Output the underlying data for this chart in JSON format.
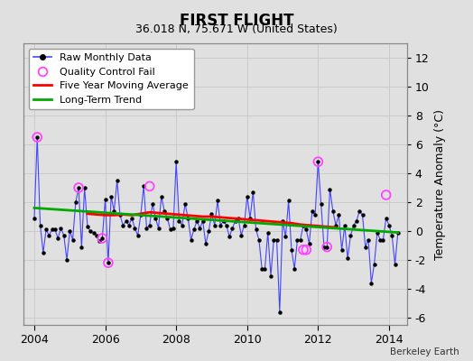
{
  "title": "FIRST FLIGHT",
  "subtitle": "36.018 N, 75.671 W (United States)",
  "ylabel": "Temperature Anomaly (°C)",
  "credit": "Berkeley Earth",
  "xlim": [
    2003.7,
    2014.5
  ],
  "ylim": [
    -6.5,
    13.0
  ],
  "yticks": [
    -6,
    -4,
    -2,
    0,
    2,
    4,
    6,
    8,
    10,
    12
  ],
  "xticks": [
    2004,
    2006,
    2008,
    2010,
    2012,
    2014
  ],
  "bg_color": "#e0e0e0",
  "plot_bg": "#e0e0e0",
  "raw_color": "#4444ff",
  "dot_color": "#000000",
  "qc_color": "#ff44ff",
  "ma_color": "#ff0000",
  "trend_color": "#00aa00",
  "raw_x": [
    2004.0,
    2004.083,
    2004.167,
    2004.25,
    2004.333,
    2004.417,
    2004.5,
    2004.583,
    2004.667,
    2004.75,
    2004.833,
    2004.917,
    2005.0,
    2005.083,
    2005.167,
    2005.25,
    2005.333,
    2005.417,
    2005.5,
    2005.583,
    2005.667,
    2005.75,
    2005.833,
    2005.917,
    2006.0,
    2006.083,
    2006.167,
    2006.25,
    2006.333,
    2006.417,
    2006.5,
    2006.583,
    2006.667,
    2006.75,
    2006.833,
    2006.917,
    2007.0,
    2007.083,
    2007.167,
    2007.25,
    2007.333,
    2007.417,
    2007.5,
    2007.583,
    2007.667,
    2007.75,
    2007.833,
    2007.917,
    2008.0,
    2008.083,
    2008.167,
    2008.25,
    2008.333,
    2008.417,
    2008.5,
    2008.583,
    2008.667,
    2008.75,
    2008.833,
    2008.917,
    2009.0,
    2009.083,
    2009.167,
    2009.25,
    2009.333,
    2009.417,
    2009.5,
    2009.583,
    2009.667,
    2009.75,
    2009.833,
    2009.917,
    2010.0,
    2010.083,
    2010.167,
    2010.25,
    2010.333,
    2010.417,
    2010.5,
    2010.583,
    2010.667,
    2010.75,
    2010.833,
    2010.917,
    2011.0,
    2011.083,
    2011.167,
    2011.25,
    2011.333,
    2011.417,
    2011.5,
    2011.583,
    2011.667,
    2011.75,
    2011.833,
    2011.917,
    2012.0,
    2012.083,
    2012.167,
    2012.25,
    2012.333,
    2012.417,
    2012.5,
    2012.583,
    2012.667,
    2012.75,
    2012.833,
    2012.917,
    2013.0,
    2013.083,
    2013.167,
    2013.25,
    2013.333,
    2013.417,
    2013.5,
    2013.583,
    2013.667,
    2013.75,
    2013.833,
    2013.917,
    2014.0,
    2014.083,
    2014.167,
    2014.25
  ],
  "raw_y": [
    0.9,
    6.5,
    0.4,
    -1.5,
    0.1,
    -0.3,
    0.1,
    0.1,
    -0.5,
    0.2,
    -0.3,
    -2.0,
    0.0,
    -0.6,
    2.0,
    3.0,
    -1.1,
    3.0,
    0.3,
    0.0,
    -0.1,
    -0.3,
    -0.7,
    -0.5,
    2.2,
    -2.2,
    2.4,
    1.4,
    3.5,
    1.1,
    0.4,
    0.7,
    0.4,
    0.9,
    0.2,
    -0.3,
    1.1,
    3.1,
    0.2,
    0.4,
    1.9,
    0.9,
    0.2,
    2.4,
    1.4,
    0.9,
    0.1,
    0.2,
    4.8,
    0.7,
    0.4,
    1.9,
    0.9,
    -0.6,
    0.1,
    0.7,
    0.2,
    0.7,
    -0.9,
    0.0,
    1.2,
    0.4,
    2.1,
    0.4,
    0.7,
    0.4,
    -0.4,
    0.2,
    0.7,
    0.9,
    -0.3,
    0.4,
    2.4,
    0.9,
    2.7,
    0.1,
    -0.6,
    -2.6,
    -2.6,
    -0.1,
    -3.1,
    -0.6,
    -0.6,
    -5.6,
    0.7,
    -0.4,
    2.1,
    -1.3,
    -2.6,
    -0.6,
    -0.6,
    0.4,
    0.1,
    -0.9,
    1.4,
    1.1,
    4.8,
    1.9,
    -1.1,
    -1.1,
    2.9,
    1.4,
    0.4,
    1.1,
    -1.3,
    0.4,
    -1.9,
    -0.3,
    0.4,
    0.7,
    1.4,
    1.1,
    -1.1,
    -0.6,
    -3.6,
    -2.3,
    -0.1,
    -0.6,
    -0.6,
    0.9,
    0.4,
    -0.3,
    -2.3,
    -0.1
  ],
  "qc_x": [
    2004.083,
    2005.25,
    2005.917,
    2006.083,
    2007.25,
    2011.583,
    2011.667,
    2012.0,
    2012.25,
    2013.917
  ],
  "qc_y": [
    6.5,
    3.0,
    -0.5,
    -2.2,
    3.1,
    -1.3,
    -1.3,
    4.8,
    -1.1,
    2.5
  ],
  "ma_x": [
    2005.5,
    2005.75,
    2006.0,
    2006.25,
    2006.5,
    2006.75,
    2007.0,
    2007.25,
    2007.5,
    2007.75,
    2008.0,
    2008.25,
    2008.5,
    2008.75,
    2009.0,
    2009.25,
    2009.5,
    2009.75,
    2010.0,
    2010.25,
    2010.5,
    2010.75,
    2011.0,
    2011.25,
    2011.5,
    2011.75,
    2012.0,
    2012.25,
    2012.5
  ],
  "ma_y": [
    1.2,
    1.15,
    1.1,
    1.1,
    1.15,
    1.1,
    1.2,
    1.3,
    1.25,
    1.2,
    1.15,
    1.1,
    1.05,
    1.0,
    1.0,
    0.95,
    0.9,
    0.85,
    0.8,
    0.75,
    0.7,
    0.65,
    0.6,
    0.55,
    0.45,
    0.4,
    0.35,
    0.3,
    0.25
  ],
  "trend_x": [
    2004.0,
    2014.25
  ],
  "trend_y": [
    1.6,
    -0.1
  ],
  "grid_color": "#c8c8c8",
  "title_fontsize": 12,
  "subtitle_fontsize": 9,
  "tick_fontsize": 9,
  "ylabel_fontsize": 9,
  "legend_fontsize": 8,
  "fig_width": 5.24,
  "fig_height": 4.0,
  "fig_dpi": 100
}
